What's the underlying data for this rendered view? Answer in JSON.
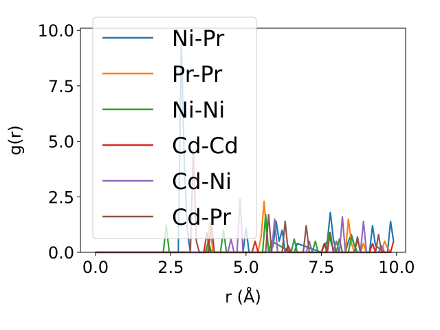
{
  "chart_data": {
    "type": "line",
    "title": "",
    "xlabel": "r (Å)",
    "ylabel": "g(r)",
    "xlim": [
      -0.5,
      10.3
    ],
    "ylim": [
      0,
      10.1
    ],
    "xticks": [
      0.0,
      2.5,
      5.0,
      7.5,
      10.0
    ],
    "xtick_labels": [
      "0.0",
      "2.5",
      "5.0",
      "7.5",
      "10.0"
    ],
    "yticks": [
      0.0,
      2.5,
      5.0,
      7.5,
      10.0
    ],
    "ytick_labels": [
      "0.0",
      "2.5",
      "5.0",
      "7.5",
      "10.0"
    ],
    "grid": false,
    "legend_position": "upper-left",
    "series": [
      {
        "name": "Ni-Pr",
        "color": "#1f77b4",
        "x": [
          0.0,
          2.75,
          2.85,
          2.95,
          3.05,
          3.15,
          4.9,
          5.0,
          5.1,
          5.8,
          5.9,
          6.0,
          6.1,
          6.2,
          6.3,
          6.6,
          6.7,
          7.5,
          7.6,
          7.7,
          7.8,
          7.9,
          8.0,
          8.3,
          8.4,
          8.5,
          8.6,
          8.7,
          9.1,
          9.2,
          9.3,
          9.6,
          9.7,
          9.8,
          9.9
        ],
        "y": [
          0.0,
          0.0,
          9.5,
          4.0,
          1.0,
          0.0,
          0.0,
          1.1,
          0.0,
          0.0,
          0.3,
          1.4,
          0.5,
          1.0,
          0.0,
          0.0,
          0.4,
          0.0,
          0.3,
          0.5,
          1.8,
          0.6,
          0.0,
          0.0,
          0.5,
          0.8,
          0.3,
          0.0,
          0.0,
          1.2,
          0.3,
          0.0,
          0.0,
          1.4,
          0.5
        ]
      },
      {
        "name": "Pr-Pr",
        "color": "#ff7f0e",
        "x": [
          0.0,
          3.7,
          3.8,
          3.9,
          5.4,
          5.5,
          5.6,
          5.7,
          5.8,
          7.9,
          8.0,
          8.1,
          8.3,
          8.4,
          8.5,
          8.6,
          8.8,
          8.9,
          9.0,
          9.5,
          9.6,
          9.7,
          9.8
        ],
        "y": [
          0.0,
          0.0,
          1.4,
          0.0,
          0.0,
          0.7,
          2.3,
          0.5,
          0.0,
          0.0,
          0.5,
          0.0,
          0.0,
          1.5,
          0.4,
          0.0,
          0.0,
          0.4,
          0.0,
          0.0,
          0.5,
          0.2,
          0.0
        ]
      },
      {
        "name": "Ni-Ni",
        "color": "#2ca02c",
        "x": [
          0.0,
          2.25,
          2.35,
          2.45,
          3.65,
          3.75,
          3.85,
          4.15,
          4.25,
          4.35,
          5.55,
          5.65,
          5.75,
          5.85,
          6.5,
          6.6,
          6.7,
          7.2,
          7.3,
          7.4,
          7.65,
          7.75,
          7.85,
          8.0,
          8.1,
          8.2,
          8.4,
          8.5,
          8.6,
          8.7
        ],
        "y": [
          0.0,
          0.0,
          1.2,
          0.0,
          0.0,
          0.5,
          0.0,
          0.0,
          1.0,
          0.0,
          0.0,
          1.7,
          0.0,
          0.5,
          0.0,
          0.6,
          0.0,
          0.0,
          0.5,
          0.0,
          0.0,
          0.9,
          0.3,
          0.0,
          0.6,
          0.0,
          0.0,
          0.7,
          0.3,
          0.0
        ]
      },
      {
        "name": "Cd-Cd",
        "color": "#d62728",
        "x": [
          0.0,
          3.6,
          3.7,
          3.8,
          5.2,
          5.3,
          5.4,
          6.3,
          6.4,
          6.5,
          7.5,
          7.6,
          7.7,
          8.6,
          8.7,
          8.8,
          9.1,
          9.2,
          9.3,
          9.8,
          9.9
        ],
        "y": [
          0.0,
          0.0,
          0.9,
          0.0,
          0.0,
          0.5,
          0.0,
          0.0,
          0.3,
          0.0,
          0.0,
          0.4,
          0.0,
          0.0,
          0.6,
          0.0,
          0.0,
          0.4,
          0.0,
          0.0,
          0.5
        ]
      },
      {
        "name": "Cd-Ni",
        "color": "#9467bd",
        "x": [
          0.0,
          4.4,
          4.5,
          4.6,
          4.7,
          4.8,
          4.9,
          5.85,
          5.95,
          6.05,
          7.0,
          7.1,
          7.2,
          7.9,
          8.0,
          8.1,
          8.2,
          8.3,
          8.8,
          8.9,
          9.0,
          9.4,
          9.5,
          9.6
        ],
        "y": [
          0.0,
          0.0,
          0.6,
          0.0,
          0.0,
          2.4,
          0.0,
          0.0,
          1.5,
          0.0,
          0.0,
          0.5,
          0.0,
          0.0,
          0.5,
          0.0,
          1.6,
          0.0,
          0.0,
          1.4,
          0.0,
          0.0,
          0.3,
          0.0
        ]
      },
      {
        "name": "Cd-Pr",
        "color": "#8c564b",
        "x": [
          0.0,
          3.15,
          3.25,
          3.35,
          3.45,
          3.75,
          3.85,
          3.95,
          5.65,
          5.75,
          5.85,
          6.2,
          6.3,
          6.4,
          6.9,
          7.0,
          7.1,
          7.7,
          7.8,
          7.9,
          8.6,
          8.7,
          8.8,
          9.3,
          9.4,
          9.5
        ],
        "y": [
          0.0,
          0.0,
          4.6,
          0.5,
          0.0,
          0.0,
          1.3,
          0.0,
          0.0,
          1.7,
          0.0,
          0.0,
          1.4,
          0.0,
          0.0,
          1.2,
          0.0,
          0.0,
          0.9,
          0.0,
          0.0,
          0.7,
          0.0,
          0.0,
          0.8,
          0.0
        ]
      }
    ]
  }
}
